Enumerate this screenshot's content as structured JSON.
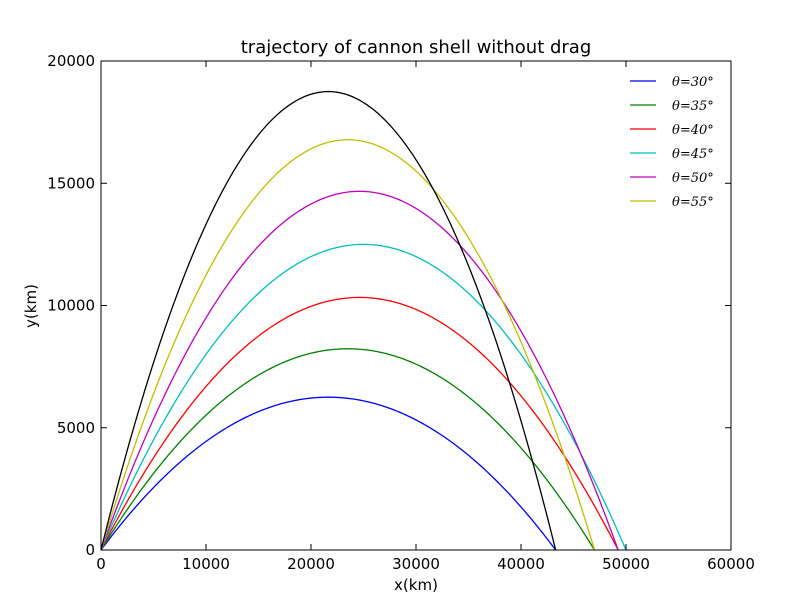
{
  "chart_data": {
    "type": "line",
    "title": "trajectory of cannon shell without drag",
    "xlabel": "x(km)",
    "ylabel": "y(km)",
    "xlim": [
      0,
      60000
    ],
    "ylim": [
      0,
      20000
    ],
    "xticks": [
      {
        "value": 0,
        "label": "0"
      },
      {
        "value": 10000,
        "label": "10000"
      },
      {
        "value": 20000,
        "label": "20000"
      },
      {
        "value": 30000,
        "label": "30000"
      },
      {
        "value": 40000,
        "label": "40000"
      },
      {
        "value": 50000,
        "label": "50000"
      },
      {
        "value": 60000,
        "label": "60000"
      }
    ],
    "yticks": [
      {
        "value": 0,
        "label": "0"
      },
      {
        "value": 5000,
        "label": "5000"
      },
      {
        "value": 10000,
        "label": "10000"
      },
      {
        "value": 15000,
        "label": "15000"
      },
      {
        "value": 20000,
        "label": "20000"
      }
    ],
    "grid": false,
    "legend_position": "top-right",
    "series": [
      {
        "name": "θ=30°",
        "color": "#0000ff",
        "range": 43300,
        "peak_x": 21650,
        "peak_y": 6250
      },
      {
        "name": "θ=35°",
        "color": "#008000",
        "range": 47000,
        "peak_x": 23500,
        "peak_y": 8230
      },
      {
        "name": "θ=40°",
        "color": "#ff0000",
        "range": 49250,
        "peak_x": 24620,
        "peak_y": 10330
      },
      {
        "name": "θ=45°",
        "color": "#00bfbf",
        "range": 50000,
        "peak_x": 25000,
        "peak_y": 12500
      },
      {
        "name": "θ=50°",
        "color": "#bf00bf",
        "range": 49250,
        "peak_x": 24620,
        "peak_y": 14670
      },
      {
        "name": "θ=55°",
        "color": "#bfbf00",
        "range": 47000,
        "peak_x": 23500,
        "peak_y": 16780
      },
      {
        "color": "#000000",
        "range": 43300,
        "peak_x": 21650,
        "peak_y": 18750
      }
    ]
  }
}
